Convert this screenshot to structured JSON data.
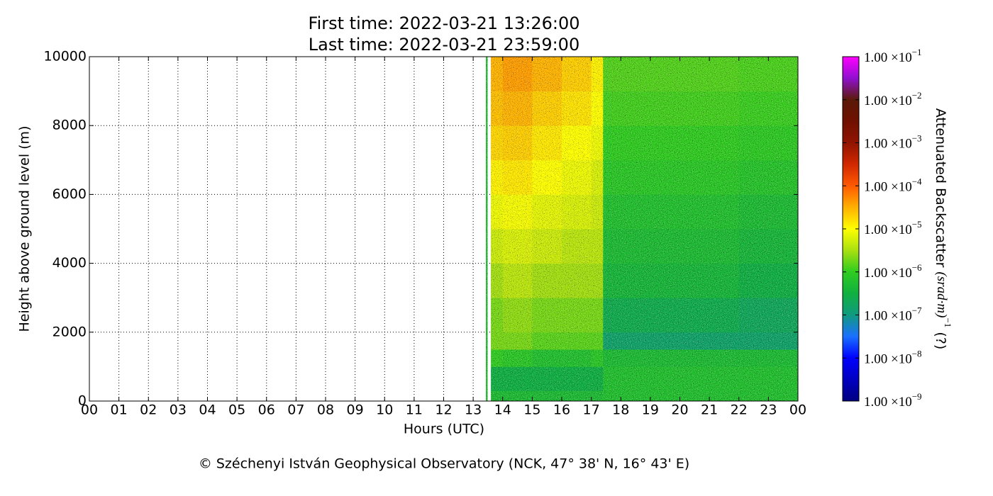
{
  "chart_data": {
    "type": "heatmap",
    "title": "First time: 2022-03-21 13:26:00",
    "subtitle": "Last time: 2022-03-21 23:59:00",
    "x_label": "Hours (UTC)",
    "y_label": "Height above ground level (m)",
    "footer": "© Széchenyi István Geophysical Observatory (NCK, 47° 38' N, 16° 43' E)",
    "xlim": [
      0,
      24
    ],
    "xticks": [
      {
        "value": 0,
        "label": "00"
      },
      {
        "value": 1,
        "label": "01"
      },
      {
        "value": 2,
        "label": "02"
      },
      {
        "value": 3,
        "label": "03"
      },
      {
        "value": 4,
        "label": "04"
      },
      {
        "value": 5,
        "label": "05"
      },
      {
        "value": 6,
        "label": "06"
      },
      {
        "value": 7,
        "label": "07"
      },
      {
        "value": 8,
        "label": "08"
      },
      {
        "value": 9,
        "label": "09"
      },
      {
        "value": 10,
        "label": "10"
      },
      {
        "value": 11,
        "label": "11"
      },
      {
        "value": 12,
        "label": "12"
      },
      {
        "value": 13,
        "label": "13"
      },
      {
        "value": 14,
        "label": "14"
      },
      {
        "value": 15,
        "label": "15"
      },
      {
        "value": 16,
        "label": "16"
      },
      {
        "value": 17,
        "label": "17"
      },
      {
        "value": 18,
        "label": "18"
      },
      {
        "value": 19,
        "label": "19"
      },
      {
        "value": 20,
        "label": "20"
      },
      {
        "value": 21,
        "label": "21"
      },
      {
        "value": 22,
        "label": "22"
      },
      {
        "value": 23,
        "label": "23"
      },
      {
        "value": 24,
        "label": "00"
      }
    ],
    "ylim": [
      0,
      10000
    ],
    "yticks": [
      0,
      2000,
      4000,
      6000,
      8000,
      10000
    ],
    "grid": true,
    "x_edges": [
      13.43,
      13.48,
      13.6,
      14,
      15,
      16,
      17,
      17.4,
      18,
      19,
      20,
      21,
      22,
      23,
      24
    ],
    "y_edges": [
      0,
      300,
      1000,
      1500,
      2000,
      3000,
      4000,
      5000,
      6000,
      7000,
      8000,
      9000,
      10000
    ],
    "z": [
      [
        6e-07,
        null,
        5e-07,
        5e-07,
        5e-07,
        5e-07,
        5e-07,
        6e-07,
        6e-07,
        6e-07,
        6e-07,
        6e-07,
        6e-07,
        6e-07
      ],
      [
        6e-07,
        null,
        3e-07,
        3e-07,
        3e-07,
        3e-07,
        3e-07,
        6e-07,
        6e-07,
        6e-07,
        6e-07,
        6e-07,
        6e-07,
        6e-07
      ],
      [
        6e-07,
        null,
        1e-06,
        8e-07,
        6e-07,
        6e-07,
        8e-07,
        5e-07,
        5e-07,
        5e-07,
        5e-07,
        5e-07,
        5e-07,
        5e-07
      ],
      [
        6e-07,
        null,
        2e-06,
        2e-06,
        1.5e-06,
        1.5e-06,
        1.5e-06,
        1.5e-07,
        1.5e-07,
        1.5e-07,
        1.5e-07,
        1.5e-07,
        1.5e-07,
        1.5e-07
      ],
      [
        6e-07,
        null,
        2e-06,
        2.5e-06,
        2e-06,
        2e-06,
        2e-06,
        2.5e-07,
        2.5e-07,
        2.5e-07,
        2.5e-07,
        2.5e-07,
        2e-07,
        2e-07
      ],
      [
        6e-07,
        null,
        3e-06,
        4e-06,
        3e-06,
        3e-06,
        3e-06,
        4e-07,
        4e-07,
        4e-07,
        4e-07,
        4e-07,
        3e-07,
        3e-07
      ],
      [
        6e-07,
        null,
        5e-06,
        6e-06,
        5e-06,
        4e-06,
        4e-06,
        5e-07,
        5e-07,
        5e-07,
        5e-07,
        5e-07,
        4e-07,
        4e-07
      ],
      [
        6e-07,
        null,
        8e-06,
        9e-06,
        7e-06,
        6e-06,
        5e-06,
        6e-07,
        6e-07,
        6e-07,
        6e-07,
        6e-07,
        5e-07,
        5e-07
      ],
      [
        6e-07,
        null,
        1.2e-05,
        1.4e-05,
        1e-05,
        8e-06,
        6e-06,
        8e-07,
        8e-07,
        8e-07,
        8e-07,
        8e-07,
        7e-07,
        7e-07
      ],
      [
        6e-07,
        null,
        1.8e-05,
        2e-05,
        1.4e-05,
        1e-05,
        8e-06,
        1e-06,
        1e-06,
        1e-06,
        1e-06,
        1e-06,
        9e-07,
        9e-07
      ],
      [
        6e-07,
        null,
        2.5e-05,
        3e-05,
        2e-05,
        1.5e-05,
        1e-05,
        1.2e-06,
        1.2e-06,
        1.2e-06,
        1.2e-06,
        1.2e-06,
        1.1e-06,
        1.1e-06
      ],
      [
        6e-07,
        null,
        3e-05,
        4e-05,
        3e-05,
        2e-05,
        1.2e-05,
        1.4e-06,
        1.4e-06,
        1.4e-06,
        1.4e-06,
        1.4e-06,
        1.3e-06,
        1.3e-06
      ]
    ],
    "color_scale": "log",
    "clim": [
      1e-09,
      0.1
    ],
    "colormap": [
      "#000080",
      "#0000c0",
      "#0000ff",
      "#1a70ff",
      "#109a80",
      "#10b040",
      "#30cc20",
      "#a8e010",
      "#ffff00",
      "#ffb000",
      "#ff5a00",
      "#d02800",
      "#901400",
      "#701000",
      "#5a1a08",
      "#9010d0",
      "#ff00ff"
    ],
    "colorbar_ticks": [
      {
        "value": 1e-09,
        "label": "1.00 ×10",
        "exponent": "−9"
      },
      {
        "value": 1e-08,
        "label": "1.00 ×10",
        "exponent": "−8"
      },
      {
        "value": 1e-07,
        "label": "1.00 ×10",
        "exponent": "−7"
      },
      {
        "value": 1e-06,
        "label": "1.00 ×10",
        "exponent": "−6"
      },
      {
        "value": 1e-05,
        "label": "1.00 ×10",
        "exponent": "−5"
      },
      {
        "value": 0.0001,
        "label": "1.00 ×10",
        "exponent": "−4"
      },
      {
        "value": 0.001,
        "label": "1.00 ×10",
        "exponent": "−3"
      },
      {
        "value": 0.01,
        "label": "1.00 ×10",
        "exponent": "−2"
      },
      {
        "value": 0.1,
        "label": "1.00 ×10",
        "exponent": "−1"
      }
    ],
    "colorbar_label": {
      "text": "Attenuated Backscatter ",
      "unit": "(srad·m)",
      "unit_exponent": "−1",
      "note": " (?)"
    }
  }
}
